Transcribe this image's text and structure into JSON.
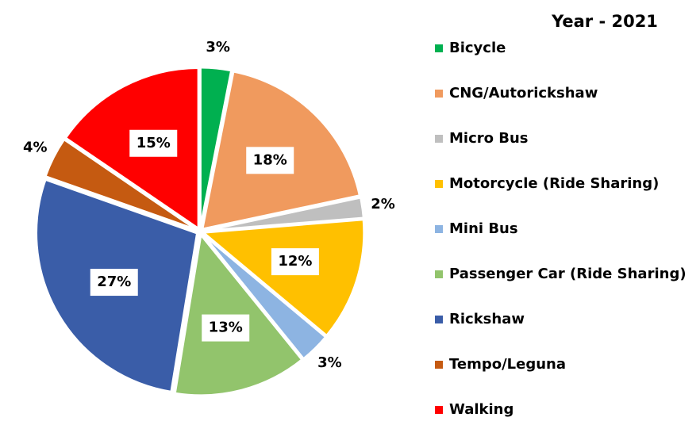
{
  "chart_data": {
    "type": "pie",
    "title": "Year - 2021",
    "categories": [
      "Bicycle",
      "CNG/Autorickshaw",
      "Micro Bus",
      "Motorcycle (Ride Sharing)",
      "Mini Bus",
      "Passenger Car (Ride Sharing)",
      "Rickshaw",
      "Tempo/Leguna",
      "Walking"
    ],
    "values": [
      3,
      18,
      2,
      12,
      3,
      13,
      27,
      4,
      15
    ],
    "value_labels": [
      "3%",
      "18%",
      "2%",
      "12%",
      "3%",
      "13%",
      "27%",
      "4%",
      "15%"
    ],
    "colors": [
      "#00b050",
      "#f09a5e",
      "#bfbfbf",
      "#ffc000",
      "#8db4e2",
      "#92c46c",
      "#3a5da8",
      "#c55a11",
      "#ff0000"
    ],
    "legend": "right"
  }
}
